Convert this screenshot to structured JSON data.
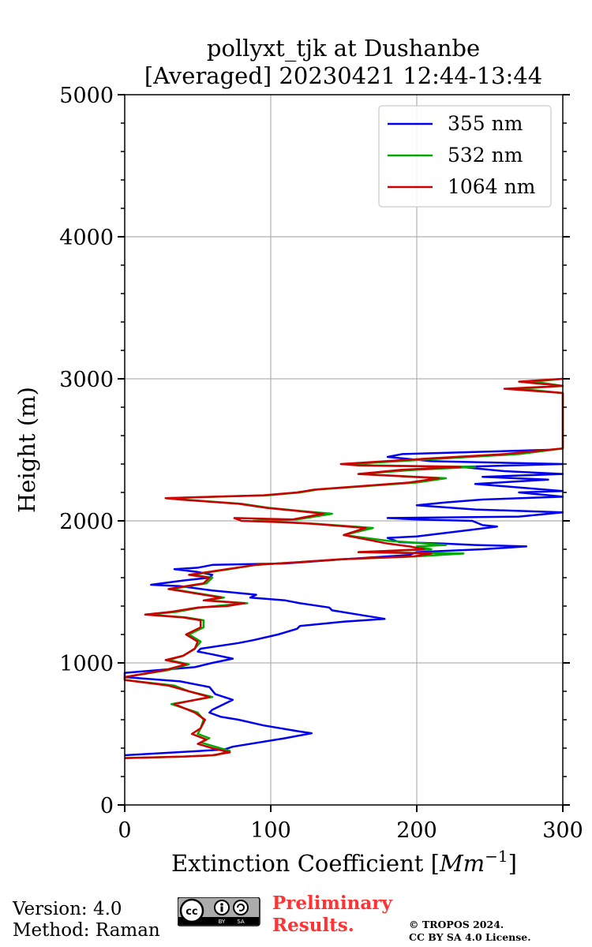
{
  "chart_data": {
    "type": "line",
    "title": "pollyxt_tjk at Dushanbe",
    "subtitle": "[Averaged] 20230421 12:44-13:44",
    "xlabel": "Extinction Coefficient [",
    "xlabel_unit": "Mm",
    "xlabel_exp": "−1",
    "xlabel_close": "]",
    "ylabel": "Height (m)",
    "xlim": [
      0,
      300
    ],
    "ylim": [
      0,
      5000
    ],
    "xticks": [
      "0",
      "100",
      "200",
      "300"
    ],
    "yticks": [
      "0",
      "1000",
      "2000",
      "3000",
      "4000",
      "5000"
    ],
    "grid": true,
    "legend_position": "top-right",
    "series": [
      {
        "name": "355 nm",
        "color": "#0000ee",
        "points": [
          [
            0,
            350
          ],
          [
            68,
            390
          ],
          [
            74,
            410
          ],
          [
            110,
            470
          ],
          [
            128,
            505
          ],
          [
            118,
            520
          ],
          [
            95,
            560
          ],
          [
            78,
            600
          ],
          [
            66,
            620
          ],
          [
            58,
            650
          ],
          [
            60,
            670
          ],
          [
            74,
            740
          ],
          [
            62,
            780
          ],
          [
            58,
            830
          ],
          [
            38,
            870
          ],
          [
            0,
            900
          ],
          [
            0,
            930
          ],
          [
            48,
            970
          ],
          [
            60,
            1000
          ],
          [
            74,
            1030
          ],
          [
            60,
            1060
          ],
          [
            50,
            1080
          ],
          [
            52,
            1100
          ],
          [
            78,
            1140
          ],
          [
            88,
            1160
          ],
          [
            105,
            1200
          ],
          [
            118,
            1240
          ],
          [
            120,
            1260
          ],
          [
            150,
            1290
          ],
          [
            178,
            1310
          ],
          [
            160,
            1340
          ],
          [
            142,
            1370
          ],
          [
            140,
            1390
          ],
          [
            120,
            1420
          ],
          [
            110,
            1440
          ],
          [
            86,
            1460
          ],
          [
            90,
            1480
          ],
          [
            70,
            1500
          ],
          [
            60,
            1510
          ],
          [
            38,
            1540
          ],
          [
            18,
            1550
          ],
          [
            40,
            1580
          ],
          [
            58,
            1600
          ],
          [
            60,
            1620
          ],
          [
            50,
            1640
          ],
          [
            34,
            1660
          ],
          [
            50,
            1670
          ],
          [
            60,
            1690
          ],
          [
            110,
            1700
          ],
          [
            150,
            1730
          ],
          [
            195,
            1760
          ],
          [
            200,
            1780
          ],
          [
            245,
            1800
          ],
          [
            275,
            1820
          ],
          [
            240,
            1830
          ],
          [
            218,
            1840
          ],
          [
            188,
            1850
          ],
          [
            180,
            1880
          ],
          [
            200,
            1890
          ],
          [
            240,
            1940
          ],
          [
            255,
            1960
          ],
          [
            245,
            1970
          ],
          [
            238,
            2000
          ],
          [
            200,
            2010
          ],
          [
            180,
            2020
          ],
          [
            270,
            2030
          ],
          [
            300,
            2060
          ],
          [
            240,
            2080
          ],
          [
            200,
            2110
          ],
          [
            220,
            2130
          ],
          [
            245,
            2150
          ],
          [
            300,
            2170
          ],
          [
            270,
            2200
          ],
          [
            300,
            2210
          ],
          [
            240,
            2260
          ],
          [
            290,
            2290
          ],
          [
            245,
            2310
          ],
          [
            300,
            2330
          ],
          [
            260,
            2350
          ],
          [
            230,
            2380
          ],
          [
            300,
            2400
          ],
          [
            210,
            2420
          ],
          [
            180,
            2450
          ],
          [
            190,
            2470
          ],
          [
            290,
            2500
          ]
        ]
      },
      {
        "name": "532 nm",
        "color": "#00aa00",
        "points": [
          [
            0,
            330
          ],
          [
            40,
            340
          ],
          [
            62,
            350
          ],
          [
            72,
            380
          ],
          [
            62,
            410
          ],
          [
            52,
            440
          ],
          [
            58,
            470
          ],
          [
            50,
            500
          ],
          [
            52,
            540
          ],
          [
            54,
            600
          ],
          [
            50,
            650
          ],
          [
            32,
            710
          ],
          [
            60,
            760
          ],
          [
            44,
            800
          ],
          [
            34,
            840
          ],
          [
            0,
            880
          ],
          [
            0,
            900
          ],
          [
            30,
            950
          ],
          [
            44,
            990
          ],
          [
            30,
            1020
          ],
          [
            40,
            1050
          ],
          [
            48,
            1100
          ],
          [
            52,
            1150
          ],
          [
            44,
            1200
          ],
          [
            54,
            1250
          ],
          [
            54,
            1300
          ],
          [
            42,
            1320
          ],
          [
            16,
            1340
          ],
          [
            36,
            1360
          ],
          [
            52,
            1390
          ],
          [
            72,
            1410
          ],
          [
            84,
            1420
          ],
          [
            56,
            1440
          ],
          [
            68,
            1460
          ],
          [
            50,
            1490
          ],
          [
            32,
            1520
          ],
          [
            56,
            1560
          ],
          [
            60,
            1600
          ],
          [
            46,
            1620
          ],
          [
            72,
            1660
          ],
          [
            90,
            1690
          ],
          [
            120,
            1710
          ],
          [
            150,
            1730
          ],
          [
            200,
            1750
          ],
          [
            232,
            1770
          ],
          [
            160,
            1780
          ],
          [
            210,
            1800
          ],
          [
            200,
            1820
          ],
          [
            220,
            1830
          ],
          [
            180,
            1860
          ],
          [
            150,
            1900
          ],
          [
            170,
            1950
          ],
          [
            130,
            1980
          ],
          [
            110,
            1990
          ],
          [
            88,
            2000
          ],
          [
            118,
            2010
          ],
          [
            142,
            2050
          ],
          [
            120,
            2070
          ],
          [
            100,
            2090
          ],
          [
            80,
            2120
          ],
          [
            40,
            2150
          ],
          [
            28,
            2160
          ],
          [
            98,
            2180
          ],
          [
            120,
            2200
          ],
          [
            132,
            2220
          ],
          [
            200,
            2270
          ],
          [
            220,
            2300
          ],
          [
            160,
            2330
          ],
          [
            200,
            2360
          ],
          [
            240,
            2380
          ],
          [
            170,
            2390
          ],
          [
            155,
            2400
          ],
          [
            220,
            2440
          ],
          [
            270,
            2470
          ],
          [
            300,
            2510
          ],
          [
            300,
            2900
          ],
          [
            270,
            2930
          ],
          [
            300,
            2950
          ],
          [
            280,
            2980
          ],
          [
            300,
            3000
          ]
        ]
      },
      {
        "name": "1064 nm",
        "color": "#cc0000",
        "points": [
          [
            0,
            330
          ],
          [
            40,
            340
          ],
          [
            60,
            350
          ],
          [
            72,
            370
          ],
          [
            60,
            400
          ],
          [
            50,
            430
          ],
          [
            56,
            460
          ],
          [
            46,
            500
          ],
          [
            52,
            540
          ],
          [
            55,
            600
          ],
          [
            48,
            650
          ],
          [
            34,
            710
          ],
          [
            58,
            760
          ],
          [
            44,
            800
          ],
          [
            30,
            840
          ],
          [
            0,
            880
          ],
          [
            0,
            900
          ],
          [
            28,
            950
          ],
          [
            42,
            990
          ],
          [
            28,
            1020
          ],
          [
            40,
            1050
          ],
          [
            48,
            1100
          ],
          [
            50,
            1150
          ],
          [
            42,
            1200
          ],
          [
            52,
            1250
          ],
          [
            52,
            1300
          ],
          [
            40,
            1320
          ],
          [
            14,
            1340
          ],
          [
            32,
            1360
          ],
          [
            50,
            1390
          ],
          [
            70,
            1400
          ],
          [
            82,
            1420
          ],
          [
            54,
            1440
          ],
          [
            66,
            1460
          ],
          [
            48,
            1490
          ],
          [
            30,
            1520
          ],
          [
            54,
            1560
          ],
          [
            58,
            1600
          ],
          [
            44,
            1620
          ],
          [
            70,
            1660
          ],
          [
            90,
            1690
          ],
          [
            120,
            1710
          ],
          [
            148,
            1730
          ],
          [
            198,
            1750
          ],
          [
            210,
            1770
          ],
          [
            160,
            1780
          ],
          [
            205,
            1800
          ],
          [
            195,
            1820
          ],
          [
            180,
            1840
          ],
          [
            170,
            1860
          ],
          [
            150,
            1900
          ],
          [
            165,
            1950
          ],
          [
            128,
            1980
          ],
          [
            108,
            1990
          ],
          [
            80,
            2000
          ],
          [
            75,
            2020
          ],
          [
            115,
            2010
          ],
          [
            136,
            2050
          ],
          [
            118,
            2070
          ],
          [
            98,
            2090
          ],
          [
            78,
            2120
          ],
          [
            38,
            2150
          ],
          [
            28,
            2160
          ],
          [
            95,
            2180
          ],
          [
            118,
            2200
          ],
          [
            130,
            2220
          ],
          [
            195,
            2270
          ],
          [
            215,
            2300
          ],
          [
            160,
            2330
          ],
          [
            190,
            2360
          ],
          [
            230,
            2380
          ],
          [
            160,
            2390
          ],
          [
            148,
            2400
          ],
          [
            210,
            2440
          ],
          [
            260,
            2470
          ],
          [
            300,
            2510
          ],
          [
            300,
            2900
          ],
          [
            260,
            2930
          ],
          [
            300,
            2950
          ],
          [
            270,
            2980
          ],
          [
            300,
            3000
          ]
        ]
      }
    ]
  },
  "footer": {
    "version": "Version: 4.0",
    "method": "Method: Raman",
    "preliminary_line1": "Preliminary",
    "preliminary_line2": "Results.",
    "copyright_line1": "© TROPOS 2024.",
    "copyright_line2": "CC BY SA 4.0 License.",
    "cc_logo_text": "cc",
    "cc_by": "BY",
    "cc_sa": "SA"
  }
}
